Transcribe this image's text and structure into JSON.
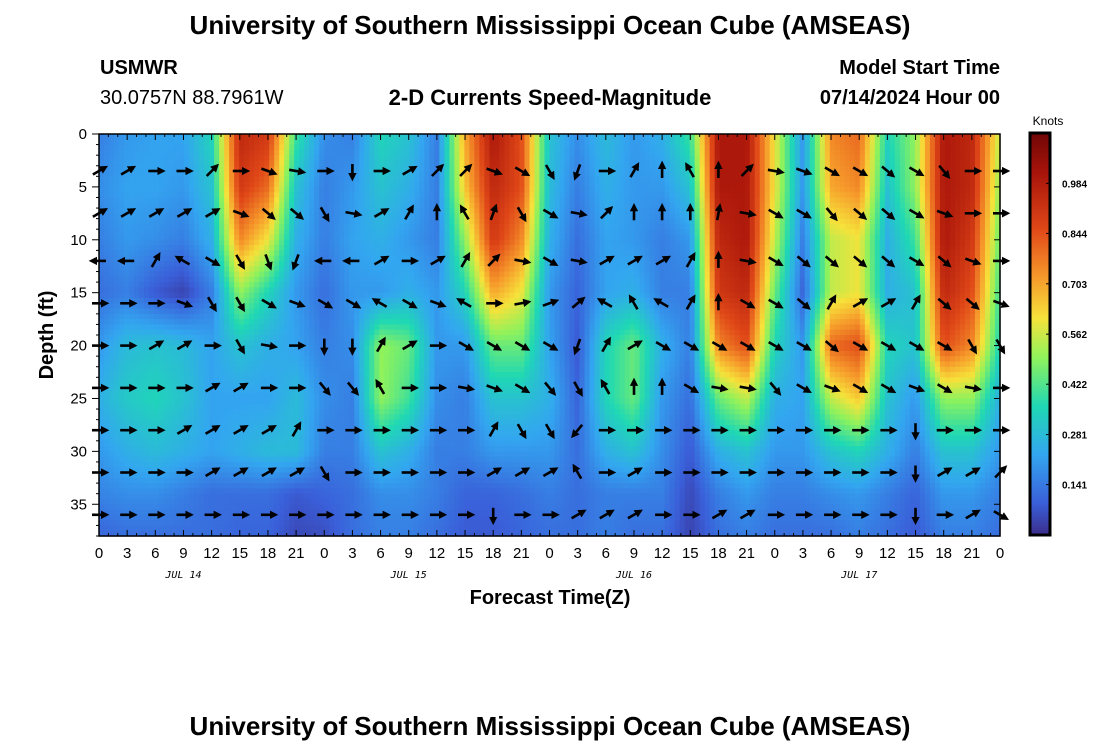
{
  "header": {
    "title_top": "University of Southern Mississippi Ocean Cube (AMSEAS)",
    "title_bottom": "University of Southern Mississippi Ocean Cube (AMSEAS)",
    "station": "USMWR",
    "coords": "30.0757N  88.7961W",
    "subtitle": "2-D Currents Speed-Magnitude",
    "model_start_label": "Model Start Time",
    "model_start_value": "07/14/2024 Hour 00"
  },
  "chart_data": {
    "type": "heatmap",
    "title": "2-D Currents Speed-Magnitude",
    "xlabel": "Forecast Time(Z)",
    "ylabel": "Depth (ft)",
    "colorbar_label": "Knots",
    "colorbar_ticks": [
      "0.984",
      "0.844",
      "0.703",
      "0.562",
      "0.422",
      "0.281",
      "0.141"
    ],
    "colorbar_values": [
      0.984,
      0.844,
      0.703,
      0.562,
      0.422,
      0.281,
      0.141
    ],
    "colorbar_range": [
      0.0,
      1.125
    ],
    "x_tick_labels": [
      "0",
      "3",
      "6",
      "9",
      "12",
      "15",
      "18",
      "21",
      "0",
      "3",
      "6",
      "9",
      "12",
      "15",
      "18",
      "21",
      "0",
      "3",
      "6",
      "9",
      "12",
      "15",
      "18",
      "21",
      "0",
      "3",
      "6",
      "9",
      "12",
      "15",
      "18",
      "21",
      "0"
    ],
    "x_range_hours": [
      0,
      96
    ],
    "date_labels": [
      {
        "text": "JUL 14",
        "hour": 9
      },
      {
        "text": "JUL 15",
        "hour": 33
      },
      {
        "text": "JUL 16",
        "hour": 57
      },
      {
        "text": "JUL 17",
        "hour": 81
      }
    ],
    "y_tick_labels": [
      "0",
      "5",
      "10",
      "15",
      "20",
      "25",
      "30",
      "35"
    ],
    "y_range_ft": [
      0,
      38
    ],
    "speed_columns": [
      {
        "hour": 0,
        "values": [
          0.15,
          0.18,
          0.15,
          0.12,
          0.2,
          0.25,
          0.2,
          0.16,
          0.1
        ]
      },
      {
        "hour": 3,
        "values": [
          0.2,
          0.22,
          0.2,
          0.15,
          0.28,
          0.32,
          0.25,
          0.18,
          0.12
        ]
      },
      {
        "hour": 6,
        "values": [
          0.22,
          0.22,
          0.18,
          0.08,
          0.3,
          0.35,
          0.28,
          0.18,
          0.12
        ]
      },
      {
        "hour": 9,
        "values": [
          0.22,
          0.2,
          0.15,
          0.04,
          0.28,
          0.3,
          0.25,
          0.15,
          0.12
        ]
      },
      {
        "hour": 12,
        "values": [
          0.35,
          0.3,
          0.25,
          0.15,
          0.22,
          0.22,
          0.22,
          0.12,
          0.12
        ]
      },
      {
        "hour": 15,
        "values": [
          0.95,
          0.9,
          0.75,
          0.5,
          0.3,
          0.22,
          0.25,
          0.12,
          0.1
        ]
      },
      {
        "hour": 18,
        "values": [
          0.9,
          0.8,
          0.6,
          0.35,
          0.25,
          0.22,
          0.28,
          0.12,
          0.1
        ]
      },
      {
        "hour": 21,
        "values": [
          0.4,
          0.3,
          0.25,
          0.2,
          0.22,
          0.28,
          0.28,
          0.08,
          0.05
        ]
      },
      {
        "hour": 24,
        "values": [
          0.18,
          0.15,
          0.15,
          0.12,
          0.15,
          0.18,
          0.15,
          0.1,
          0.06
        ]
      },
      {
        "hour": 27,
        "values": [
          0.15,
          0.2,
          0.22,
          0.2,
          0.18,
          0.15,
          0.15,
          0.12,
          0.12
        ]
      },
      {
        "hour": 30,
        "values": [
          0.35,
          0.3,
          0.25,
          0.2,
          0.5,
          0.5,
          0.3,
          0.18,
          0.15
        ]
      },
      {
        "hour": 33,
        "values": [
          0.3,
          0.25,
          0.2,
          0.25,
          0.45,
          0.4,
          0.25,
          0.18,
          0.15
        ]
      },
      {
        "hour": 36,
        "values": [
          0.15,
          0.15,
          0.15,
          0.2,
          0.2,
          0.18,
          0.15,
          0.15,
          0.12
        ]
      },
      {
        "hour": 39,
        "values": [
          0.7,
          0.65,
          0.5,
          0.35,
          0.2,
          0.15,
          0.15,
          0.1,
          0.08
        ]
      },
      {
        "hour": 42,
        "values": [
          1.0,
          0.95,
          0.9,
          0.7,
          0.45,
          0.3,
          0.2,
          0.1,
          0.08
        ]
      },
      {
        "hour": 45,
        "values": [
          0.85,
          0.85,
          0.75,
          0.6,
          0.45,
          0.3,
          0.2,
          0.12,
          0.1
        ]
      },
      {
        "hour": 48,
        "values": [
          0.3,
          0.28,
          0.25,
          0.2,
          0.22,
          0.25,
          0.2,
          0.15,
          0.12
        ]
      },
      {
        "hour": 51,
        "values": [
          0.18,
          0.15,
          0.12,
          0.1,
          0.08,
          0.1,
          0.12,
          0.12,
          0.12
        ]
      },
      {
        "hour": 54,
        "values": [
          0.28,
          0.25,
          0.22,
          0.22,
          0.35,
          0.35,
          0.25,
          0.15,
          0.15
        ]
      },
      {
        "hour": 57,
        "values": [
          0.2,
          0.2,
          0.2,
          0.25,
          0.45,
          0.45,
          0.3,
          0.15,
          0.12
        ]
      },
      {
        "hour": 60,
        "values": [
          0.25,
          0.2,
          0.15,
          0.15,
          0.25,
          0.2,
          0.18,
          0.15,
          0.12
        ]
      },
      {
        "hour": 63,
        "values": [
          0.4,
          0.3,
          0.2,
          0.15,
          0.15,
          0.12,
          0.08,
          0.05,
          0.04
        ]
      },
      {
        "hour": 66,
        "values": [
          1.0,
          1.0,
          0.95,
          0.9,
          0.75,
          0.45,
          0.25,
          0.15,
          0.12
        ]
      },
      {
        "hour": 69,
        "values": [
          1.0,
          1.0,
          1.0,
          0.95,
          0.85,
          0.55,
          0.3,
          0.2,
          0.15
        ]
      },
      {
        "hour": 72,
        "values": [
          0.6,
          0.6,
          0.55,
          0.45,
          0.35,
          0.25,
          0.2,
          0.15,
          0.12
        ]
      },
      {
        "hour": 75,
        "values": [
          0.2,
          0.2,
          0.15,
          0.1,
          0.2,
          0.22,
          0.2,
          0.15,
          0.12
        ]
      },
      {
        "hour": 78,
        "values": [
          0.75,
          0.7,
          0.55,
          0.55,
          0.8,
          0.55,
          0.3,
          0.18,
          0.12
        ]
      },
      {
        "hour": 81,
        "values": [
          0.8,
          0.75,
          0.6,
          0.6,
          0.85,
          0.65,
          0.35,
          0.2,
          0.15
        ]
      },
      {
        "hour": 84,
        "values": [
          0.35,
          0.3,
          0.25,
          0.25,
          0.35,
          0.3,
          0.25,
          0.15,
          0.12
        ]
      },
      {
        "hour": 87,
        "values": [
          0.5,
          0.5,
          0.4,
          0.3,
          0.3,
          0.2,
          0.15,
          0.1,
          0.08
        ]
      },
      {
        "hour": 90,
        "values": [
          1.0,
          1.0,
          1.0,
          0.95,
          0.85,
          0.5,
          0.3,
          0.2,
          0.15
        ]
      },
      {
        "hour": 93,
        "values": [
          0.95,
          0.95,
          0.9,
          0.85,
          0.75,
          0.5,
          0.3,
          0.2,
          0.15
        ]
      },
      {
        "hour": 96,
        "values": [
          0.55,
          0.5,
          0.45,
          0.4,
          0.35,
          0.25,
          0.2,
          0.15,
          0.12
        ]
      }
    ],
    "speed_depths_ft": [
      0,
      5,
      10,
      15,
      20,
      25,
      30,
      34,
      38
    ],
    "vector_depths_ft": [
      3.5,
      7.5,
      12,
      16,
      20,
      24,
      28,
      32,
      36
    ],
    "vector_directions_deg": [
      [
        60,
        60,
        90,
        90,
        45,
        90,
        110,
        100,
        90,
        180,
        90,
        60,
        45,
        45,
        110,
        120,
        150,
        200,
        90,
        30,
        0,
        330,
        0,
        45,
        100,
        110,
        120,
        120,
        130,
        120,
        140,
        90,
        90
      ],
      [
        60,
        60,
        60,
        60,
        60,
        110,
        130,
        130,
        150,
        100,
        60,
        30,
        0,
        330,
        20,
        150,
        120,
        100,
        45,
        0,
        0,
        0,
        10,
        100,
        120,
        120,
        140,
        130,
        130,
        120,
        110,
        90,
        90
      ],
      [
        270,
        270,
        30,
        300,
        120,
        150,
        160,
        200,
        270,
        270,
        60,
        90,
        60,
        30,
        45,
        100,
        120,
        100,
        60,
        60,
        60,
        30,
        0,
        100,
        120,
        130,
        130,
        130,
        130,
        120,
        130,
        110,
        90
      ],
      [
        90,
        90,
        90,
        110,
        150,
        150,
        120,
        110,
        120,
        120,
        300,
        120,
        110,
        300,
        90,
        80,
        70,
        50,
        300,
        330,
        300,
        30,
        0,
        120,
        120,
        130,
        30,
        60,
        60,
        30,
        130,
        130,
        110
      ],
      [
        90,
        90,
        60,
        60,
        90,
        150,
        100,
        90,
        180,
        180,
        30,
        60,
        90,
        120,
        120,
        120,
        120,
        200,
        30,
        60,
        120,
        120,
        120,
        120,
        120,
        120,
        130,
        120,
        120,
        120,
        120,
        150,
        150
      ],
      [
        90,
        90,
        90,
        90,
        60,
        60,
        90,
        90,
        140,
        140,
        330,
        90,
        90,
        100,
        110,
        120,
        140,
        150,
        330,
        0,
        0,
        120,
        100,
        100,
        140,
        120,
        110,
        120,
        120,
        110,
        120,
        100,
        90
      ],
      [
        90,
        90,
        90,
        60,
        60,
        60,
        60,
        30,
        90,
        90,
        90,
        90,
        90,
        90,
        30,
        150,
        150,
        220,
        90,
        90,
        90,
        90,
        90,
        90,
        90,
        90,
        90,
        90,
        90,
        180,
        90,
        90,
        90
      ],
      [
        90,
        90,
        90,
        90,
        60,
        60,
        60,
        60,
        150,
        90,
        90,
        90,
        90,
        90,
        60,
        60,
        60,
        330,
        90,
        60,
        90,
        90,
        90,
        90,
        90,
        90,
        90,
        90,
        90,
        180,
        60,
        60,
        45
      ],
      [
        90,
        90,
        90,
        90,
        90,
        90,
        90,
        90,
        90,
        90,
        90,
        90,
        90,
        90,
        180,
        90,
        90,
        60,
        60,
        60,
        90,
        90,
        60,
        60,
        90,
        90,
        90,
        90,
        90,
        180,
        90,
        60,
        120
      ]
    ]
  }
}
